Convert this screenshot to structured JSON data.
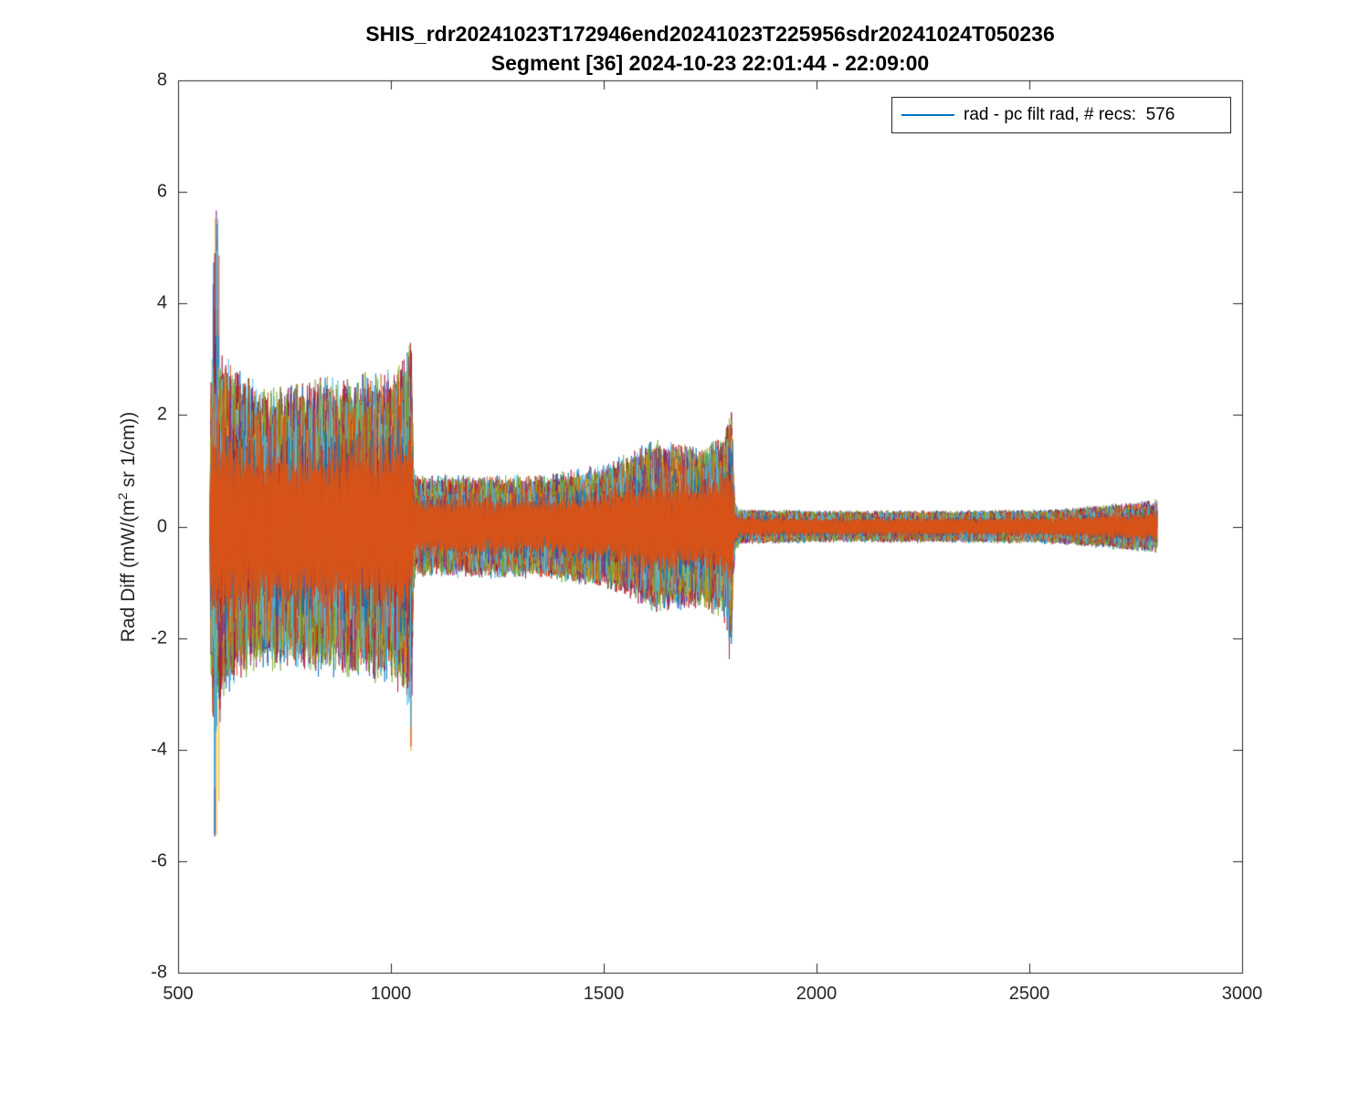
{
  "header": {
    "title_line1": "SHIS_rdr20241023T172946end20241023T225956sdr20241024T050236",
    "title_line2": "Segment [36] 2024-10-23 22:01:44 - 22:09:00"
  },
  "legend": {
    "label": "rad - pc filt rad, # recs:  576",
    "line_color": "#0072BD"
  },
  "axes": {
    "ylabel_prefix": "Rad Diff (mW/(m",
    "ylabel_sup": "2",
    "ylabel_suffix": " sr 1/cm))"
  },
  "chart_data": {
    "type": "line",
    "title": "SHIS_rdr20241023T172946end20241023T225956sdr20241024T050236",
    "subtitle": "Segment [36] 2024-10-23 22:01:44 - 22:09:00",
    "xlabel": "",
    "ylabel": "Rad Diff (mW/(m2 sr 1/cm))",
    "xlim": [
      500,
      3000
    ],
    "ylim": [
      -8,
      8
    ],
    "x_ticks": [
      500,
      1000,
      1500,
      2000,
      2500,
      3000
    ],
    "y_ticks": [
      -8,
      -6,
      -4,
      -2,
      0,
      2,
      4,
      6,
      8
    ],
    "grid": false,
    "legend_position": "top-right",
    "legend_entries": [
      "rad - pc filt rad, # recs:  576"
    ],
    "n_records": 576,
    "x_start": 575,
    "x_end": 2800,
    "description": "576 overplotted noisy radiance-difference spectra; symmetric noise band about 0 whose half-width envelope (mW/(m2 sr 1/cm)) vs wavenumber (1/cm) is listed below; rare spikes listed separately",
    "envelope": [
      [
        574,
        0.0
      ],
      [
        578,
        3.1
      ],
      [
        590,
        3.4
      ],
      [
        640,
        2.9
      ],
      [
        700,
        2.6
      ],
      [
        800,
        2.7
      ],
      [
        900,
        2.8
      ],
      [
        1000,
        2.9
      ],
      [
        1035,
        3.2
      ],
      [
        1048,
        3.5
      ],
      [
        1053,
        1.2
      ],
      [
        1060,
        0.95
      ],
      [
        1200,
        0.95
      ],
      [
        1350,
        0.95
      ],
      [
        1430,
        1.05
      ],
      [
        1500,
        1.15
      ],
      [
        1560,
        1.35
      ],
      [
        1620,
        1.6
      ],
      [
        1680,
        1.55
      ],
      [
        1730,
        1.5
      ],
      [
        1780,
        1.7
      ],
      [
        1800,
        2.2
      ],
      [
        1808,
        0.5
      ],
      [
        1820,
        0.33
      ],
      [
        2000,
        0.3
      ],
      [
        2300,
        0.3
      ],
      [
        2550,
        0.32
      ],
      [
        2700,
        0.42
      ],
      [
        2800,
        0.5
      ]
    ],
    "spikes": [
      {
        "x": 590,
        "w": 14,
        "amp": 6.7
      },
      {
        "x": 1046,
        "w": 9,
        "amp": 4.3
      },
      {
        "x": 1797,
        "w": 9,
        "amp": 2.5
      }
    ],
    "palette": [
      "#0072BD",
      "#D95319",
      "#EDB120",
      "#7E2F8E",
      "#77AC30",
      "#4DBEEE",
      "#A2142F"
    ],
    "core_color": "#D95319",
    "axis_color": "#262626"
  }
}
